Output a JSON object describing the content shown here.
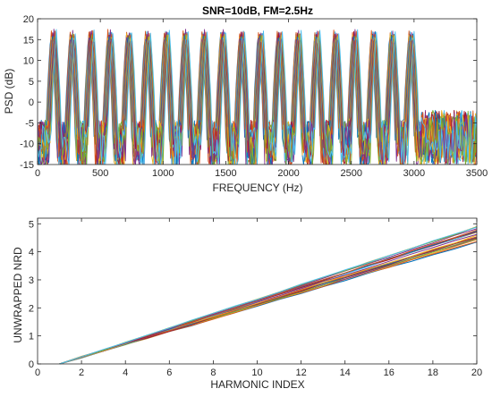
{
  "chart_data": [
    {
      "type": "line",
      "title": "SNR=10dB, FM=2.5Hz",
      "xlabel": "FREQUENCY (Hz)",
      "ylabel": "PSD (dB)",
      "xlim": [
        0,
        3500
      ],
      "ylim": [
        -15,
        20
      ],
      "xticks": [
        "0",
        "500",
        "1000",
        "1500",
        "2000",
        "2500",
        "3000",
        "3500"
      ],
      "yticks": [
        "-15",
        "-10",
        "-5",
        "0",
        "5",
        "10",
        "15",
        "20"
      ],
      "grid": false,
      "harmonic_peak_frequencies_hz": [
        130,
        280,
        430,
        580,
        730,
        880,
        1030,
        1180,
        1330,
        1480,
        1630,
        1780,
        1930,
        2080,
        2230,
        2380,
        2530,
        2680,
        2830,
        2980
      ],
      "peak_level_db": 17,
      "in_band_floor_db": -15,
      "noise_floor_range_db": [
        -15,
        -2
      ],
      "harmonic_band_end_hz": 3060,
      "series_count": 20,
      "series_colors": [
        "#0072BD",
        "#D95319",
        "#EDB120",
        "#7E2F8E",
        "#77AC30",
        "#4DBEEE",
        "#A2142F"
      ]
    },
    {
      "type": "line",
      "title": "",
      "xlabel": "HARMONIC INDEX",
      "ylabel": "UNWRAPPED NRD",
      "xlim": [
        0,
        20
      ],
      "ylim": [
        0,
        5.2
      ],
      "xticks": [
        "0",
        "2",
        "4",
        "6",
        "8",
        "10",
        "12",
        "14",
        "16",
        "18",
        "20"
      ],
      "yticks": [
        "0",
        "1",
        "2",
        "3",
        "4",
        "5"
      ],
      "grid": false,
      "x_start": 1,
      "x_end": 20,
      "y_at_start": 0,
      "y_at_end_range": [
        4.35,
        5.0
      ],
      "series_count": 20,
      "series_colors": [
        "#0072BD",
        "#D95319",
        "#EDB120",
        "#7E2F8E",
        "#77AC30",
        "#4DBEEE",
        "#A2142F"
      ]
    }
  ]
}
